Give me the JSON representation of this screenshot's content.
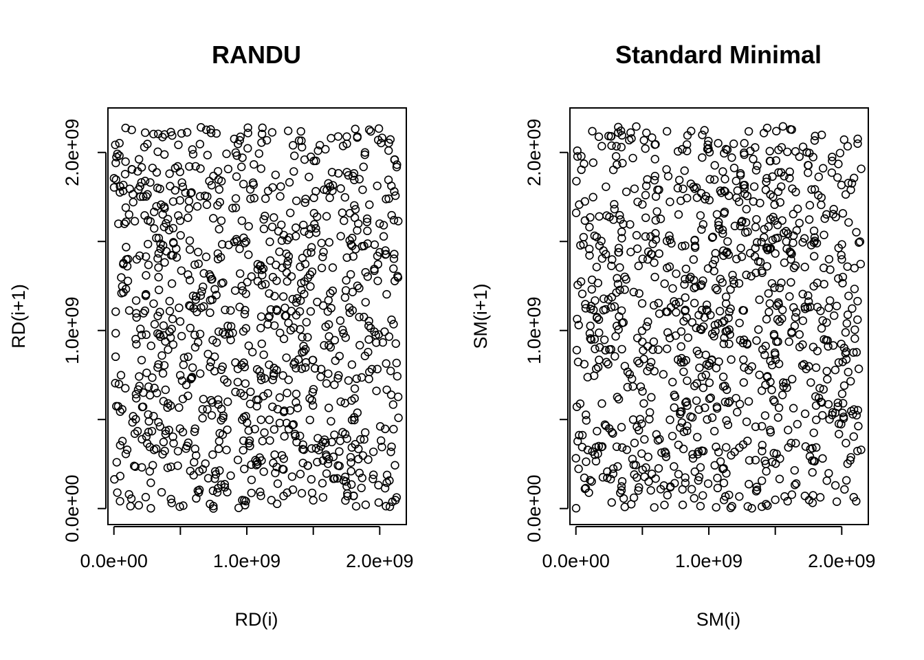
{
  "chart_data": [
    {
      "type": "scatter",
      "title": "RANDU",
      "xlabel": "RD(i)",
      "ylabel": "RD(i+1)",
      "xlim": [
        -45000000,
        2200000000
      ],
      "ylim": [
        -90000000,
        2250000000
      ],
      "xticks": [
        0,
        500000000,
        1000000000,
        1500000000,
        2000000000
      ],
      "xtick_labels": [
        "0.0e+00",
        "",
        "1.0e+09",
        "",
        "2.0e+09"
      ],
      "yticks": [
        0,
        500000000,
        1000000000,
        1500000000,
        2000000000
      ],
      "ytick_labels": [
        "0.0e+00",
        "",
        "1.0e+09",
        "",
        "2.0e+09"
      ],
      "grid": false,
      "generator": "randu",
      "n_points": 1000,
      "marker": "open-circle",
      "point_color": "#000000"
    },
    {
      "type": "scatter",
      "title": "Standard Minimal",
      "xlabel": "SM(i)",
      "ylabel": "SM(i+1)",
      "xlim": [
        -45000000,
        2200000000
      ],
      "ylim": [
        -90000000,
        2250000000
      ],
      "xticks": [
        0,
        500000000,
        1000000000,
        1500000000,
        2000000000
      ],
      "xtick_labels": [
        "0.0e+00",
        "",
        "1.0e+09",
        "",
        "2.0e+09"
      ],
      "yticks": [
        0,
        500000000,
        1000000000,
        1500000000,
        2000000000
      ],
      "ytick_labels": [
        "0.0e+00",
        "",
        "1.0e+09",
        "",
        "2.0e+09"
      ],
      "grid": false,
      "generator": "minstd",
      "n_points": 1000,
      "marker": "open-circle",
      "point_color": "#000000"
    }
  ]
}
